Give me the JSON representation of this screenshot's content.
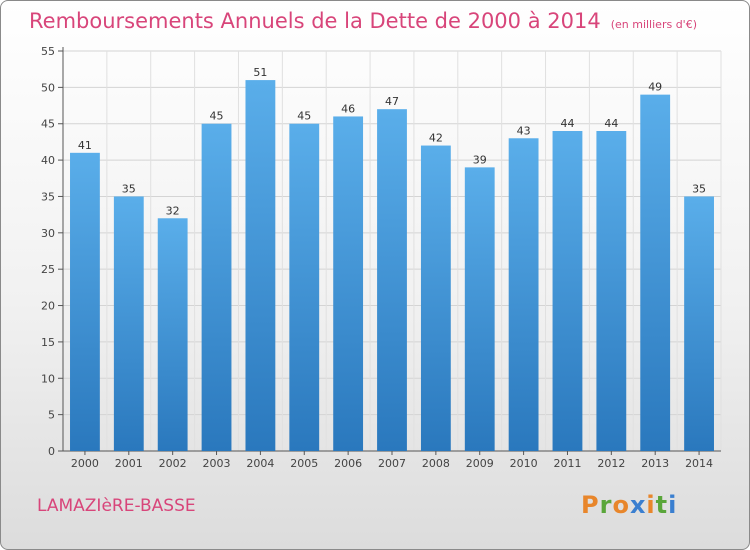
{
  "header": {
    "title": "Remboursements Annuels de la Dette de 2000 à 2014",
    "unit": "(en milliers d'€)"
  },
  "footer": {
    "commune": "LAMAZIèRE-BASSE",
    "brand": "Proxiti"
  },
  "colors": {
    "title": "#d8457a",
    "bar_top": "#5aaeea",
    "bar_bottom": "#2a78bd",
    "brand_letters": [
      "#e8862b",
      "#5aa63a",
      "#e8862b",
      "#3a7fd0",
      "#e8862b",
      "#5aa63a",
      "#3a7fd0"
    ]
  },
  "chart_data": {
    "type": "bar",
    "title": "Remboursements Annuels de la Dette de 2000 à 2014",
    "categories": [
      "2000",
      "2001",
      "2002",
      "2003",
      "2004",
      "2005",
      "2006",
      "2007",
      "2008",
      "2009",
      "2010",
      "2011",
      "2012",
      "2013",
      "2014"
    ],
    "values": [
      41,
      35,
      32,
      45,
      51,
      45,
      46,
      47,
      42,
      39,
      43,
      44,
      44,
      49,
      35
    ],
    "yticks": [
      0,
      5,
      10,
      15,
      20,
      25,
      30,
      35,
      40,
      45,
      50,
      55
    ],
    "ylim": [
      0,
      55
    ],
    "grid": true,
    "data_labels": true
  }
}
